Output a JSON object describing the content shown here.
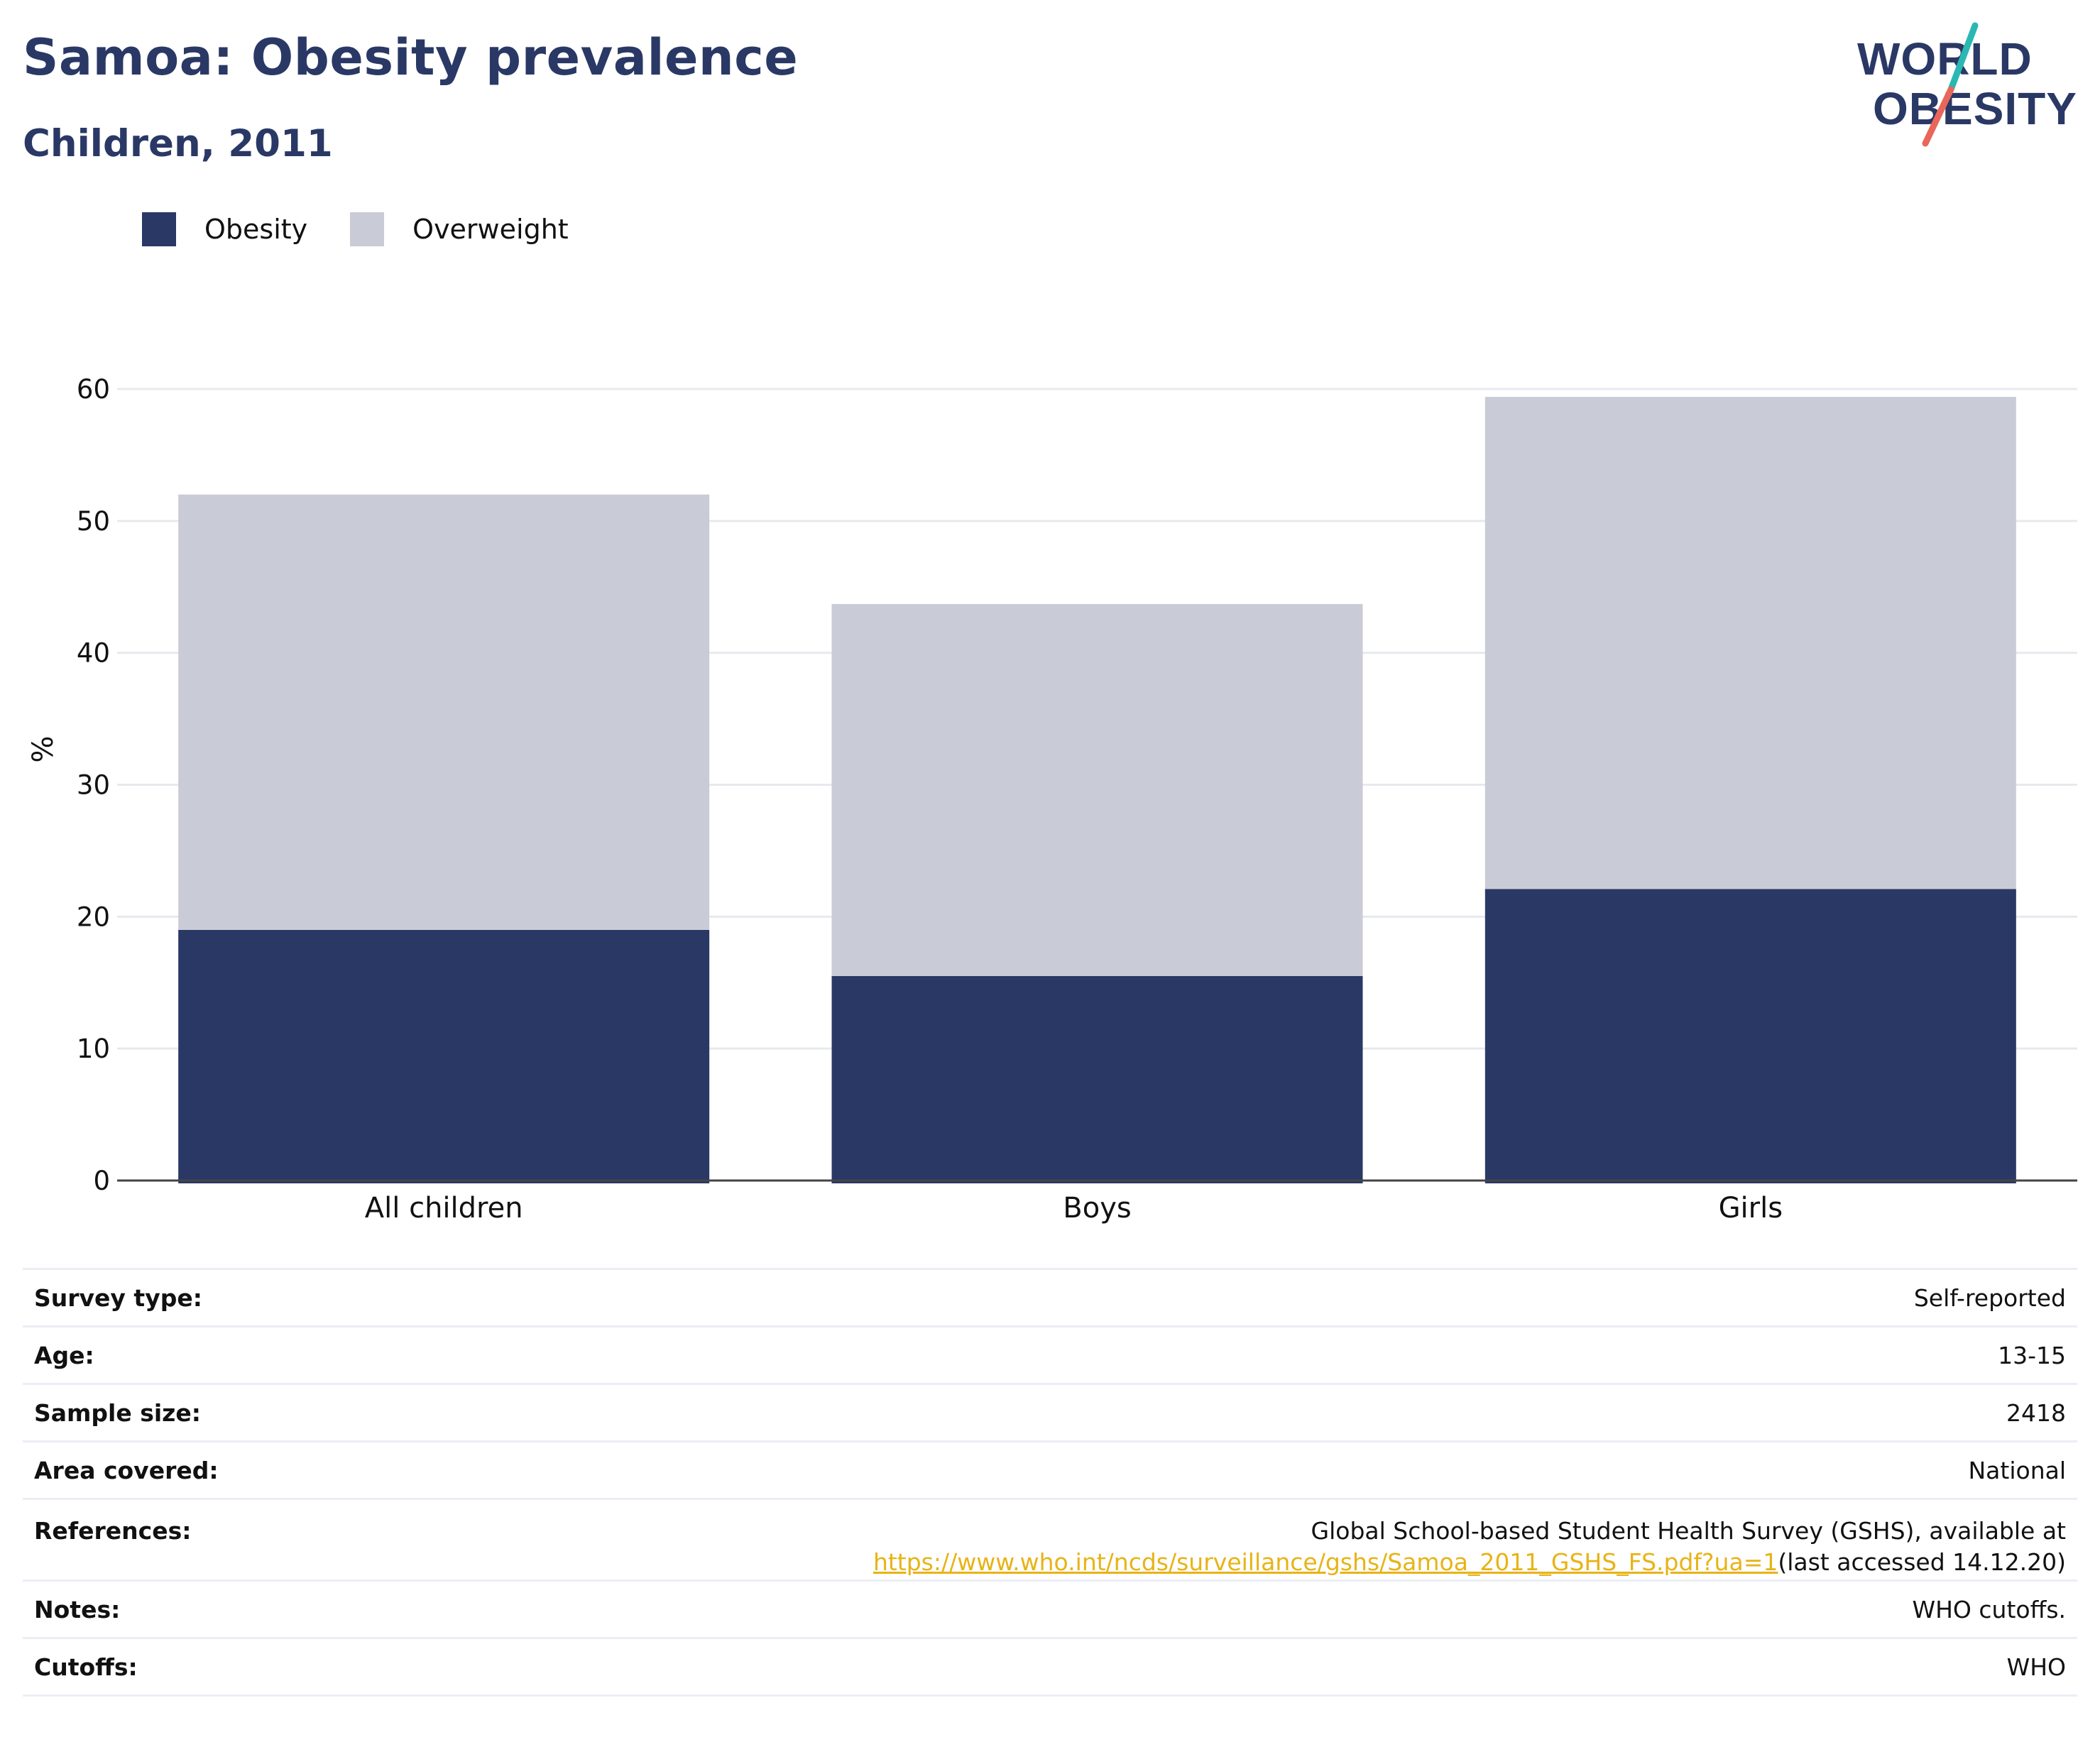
{
  "header": {
    "title": "Samoa: Obesity prevalence",
    "subtitle": "Children, 2011"
  },
  "logo": {
    "line1": "WORLD",
    "line2": "OBESITY",
    "colors": {
      "text": "#2a3865",
      "slash_top": "#2bb8b2",
      "slash_bottom": "#e8675a"
    }
  },
  "legend": [
    {
      "label": "Obesity",
      "color": "#2a3865"
    },
    {
      "label": "Overweight",
      "color": "#c9cbd6"
    }
  ],
  "chart_data": {
    "type": "bar",
    "stacked": true,
    "categories": [
      "All children",
      "Boys",
      "Girls"
    ],
    "series": [
      {
        "name": "Obesity",
        "color": "#2a3865",
        "values": [
          19.0,
          15.5,
          22.1
        ]
      },
      {
        "name": "Overweight",
        "color": "#c9cbd6",
        "values": [
          33.0,
          28.2,
          37.3
        ]
      }
    ],
    "totals": [
      52.0,
      43.7,
      59.4
    ],
    "ylabel": "%",
    "ylim": [
      0,
      60
    ],
    "yticks": [
      0,
      10,
      20,
      30,
      40,
      50,
      60
    ],
    "grid": true,
    "legend_position": "top-left"
  },
  "info": {
    "rows": [
      {
        "label": "Survey type:",
        "value": "Self-reported"
      },
      {
        "label": "Age:",
        "value": "13-15"
      },
      {
        "label": "Sample size:",
        "value": "2418"
      },
      {
        "label": "Area covered:",
        "value": "National"
      }
    ],
    "references": {
      "label": "References:",
      "text": "Global School-based Student Health Survey (GSHS), available at",
      "link": "https://www.who.int/ncds/surveillance/gshs/Samoa_2011_GSHS_FS.pdf?ua=1",
      "suffix": "(last accessed 14.12.20)"
    },
    "rows_after": [
      {
        "label": "Notes:",
        "value": "WHO cutoffs."
      },
      {
        "label": "Cutoffs:",
        "value": "WHO"
      }
    ]
  }
}
